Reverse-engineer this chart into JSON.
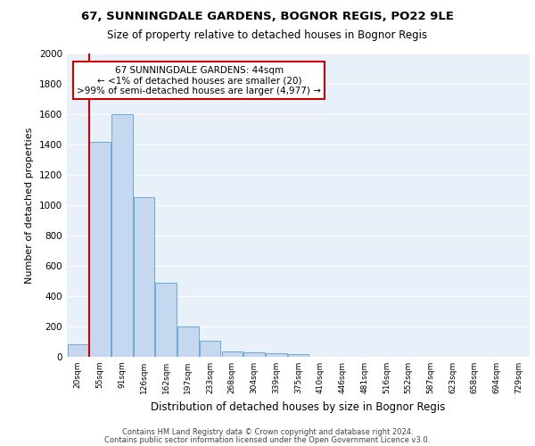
{
  "title1": "67, SUNNINGDALE GARDENS, BOGNOR REGIS, PO22 9LE",
  "title2": "Size of property relative to detached houses in Bognor Regis",
  "xlabel": "Distribution of detached houses by size in Bognor Regis",
  "ylabel": "Number of detached properties",
  "categories": [
    "20sqm",
    "55sqm",
    "91sqm",
    "126sqm",
    "162sqm",
    "197sqm",
    "233sqm",
    "268sqm",
    "304sqm",
    "339sqm",
    "375sqm",
    "410sqm",
    "446sqm",
    "481sqm",
    "516sqm",
    "552sqm",
    "587sqm",
    "623sqm",
    "658sqm",
    "694sqm",
    "729sqm"
  ],
  "values": [
    80,
    1420,
    1600,
    1050,
    490,
    200,
    105,
    35,
    30,
    25,
    20,
    0,
    0,
    0,
    0,
    0,
    0,
    0,
    0,
    0,
    0
  ],
  "bar_color": "#c5d8f0",
  "bar_edge_color": "#6aaad4",
  "background_color": "#e8f0fa",
  "grid_color": "#ffffff",
  "vline_x": 0.5,
  "vline_color": "#cc0000",
  "annotation_text": "67 SUNNINGDALE GARDENS: 44sqm\n← <1% of detached houses are smaller (20)\n>99% of semi-detached houses are larger (4,977) →",
  "annotation_box_color": "#ffffff",
  "annotation_box_edge": "#cc0000",
  "ylim": [
    0,
    2000
  ],
  "yticks": [
    0,
    200,
    400,
    600,
    800,
    1000,
    1200,
    1400,
    1600,
    1800,
    2000
  ],
  "footer1": "Contains HM Land Registry data © Crown copyright and database right 2024.",
  "footer2": "Contains public sector information licensed under the Open Government Licence v3.0."
}
